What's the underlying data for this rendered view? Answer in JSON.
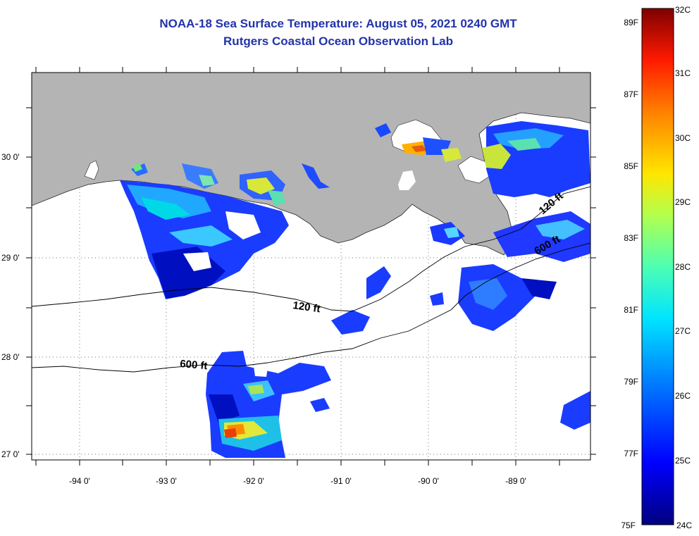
{
  "header": {
    "title": "NOAA-18 Sea Surface Temperature:  August 05, 2021 0240 GMT",
    "subtitle": "Rutgers Coastal Ocean Observation Lab"
  },
  "map": {
    "lon_labels": [
      "-94 0'",
      "-93 0'",
      "-92 0'",
      "-91 0'",
      "-90 0'",
      "-89 0'"
    ],
    "lat_labels": [
      "30 0'",
      "29 0'",
      "28 0'",
      "27 0'"
    ],
    "contour_labels": [
      "120 ft",
      "600 ft",
      "120 ft",
      "600 ft"
    ]
  },
  "colorbar": {
    "celsius_labels": [
      "32C",
      "31C",
      "30C",
      "29C",
      "28C",
      "27C",
      "26C",
      "25C",
      "24C"
    ],
    "fahrenheit_labels": [
      "89F",
      "87F",
      "85F",
      "83F",
      "81F",
      "79F",
      "77F",
      "75F"
    ],
    "colors": [
      "#00007f",
      "#0000ff",
      "#0080ff",
      "#00e5ff",
      "#4dffb3",
      "#b3ff4d",
      "#ffe600",
      "#ff8000",
      "#ff1a00",
      "#7f0000"
    ]
  }
}
